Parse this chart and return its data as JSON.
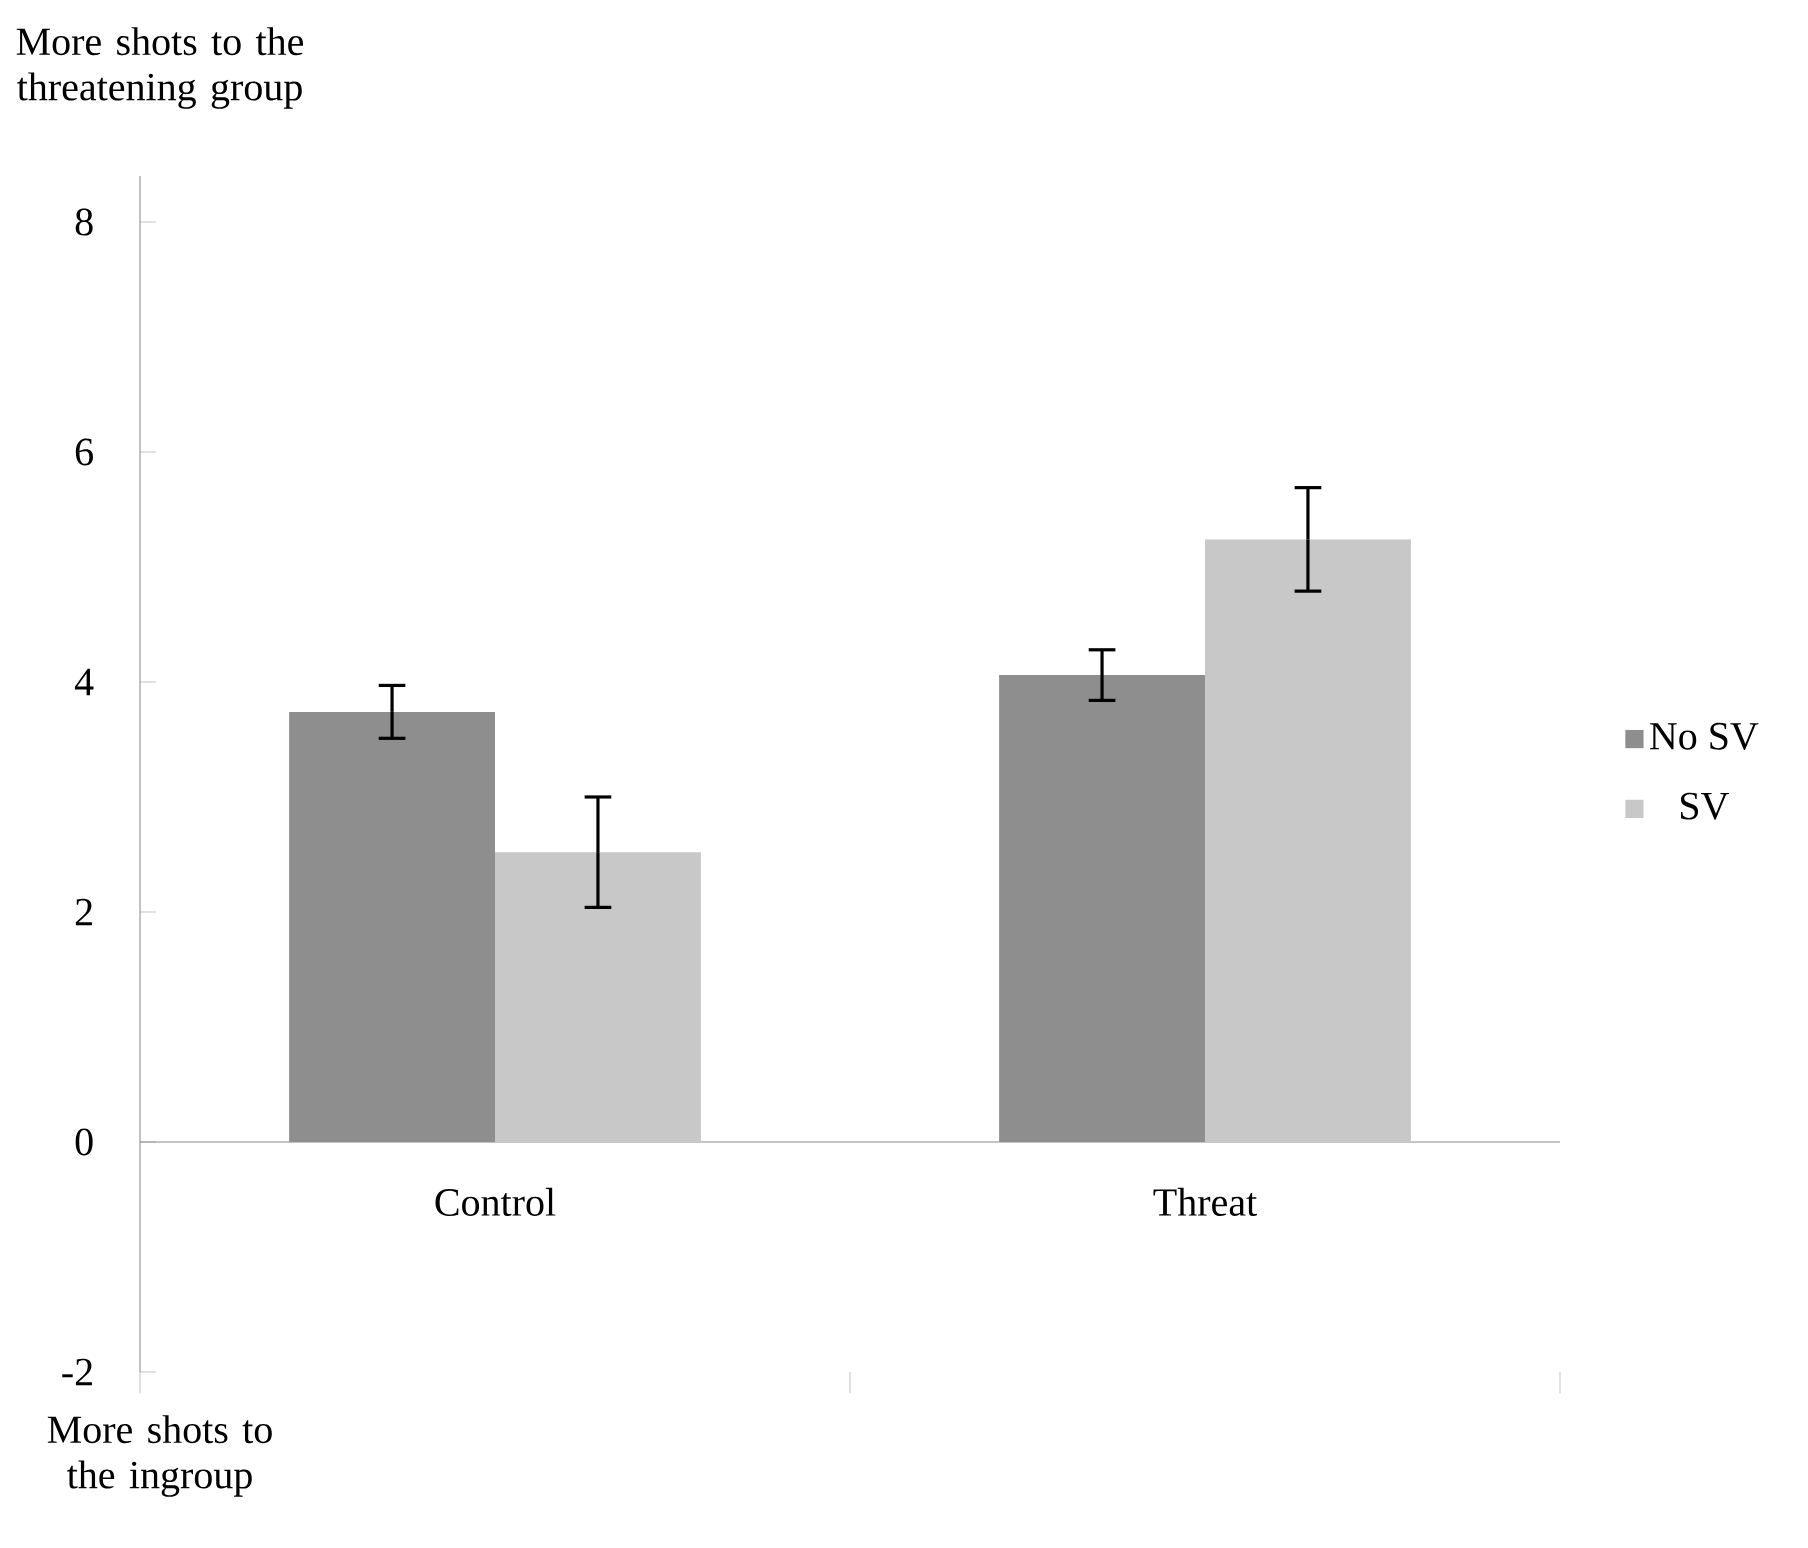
{
  "chart_data": {
    "type": "bar",
    "categories": [
      "Control",
      "Threat"
    ],
    "series": [
      {
        "name": "No SV",
        "color": "#8e8e8e",
        "values": [
          3.74,
          4.06
        ],
        "errors": [
          0.23,
          0.22
        ]
      },
      {
        "name": "SV",
        "color": "#c8c8c8",
        "values": [
          2.52,
          5.24
        ],
        "errors": [
          0.48,
          0.45
        ]
      }
    ],
    "ylim": [
      -2,
      8.4
    ],
    "yticks": [
      -2,
      0,
      2,
      4,
      6,
      8
    ],
    "legend": "right",
    "annotations": [
      "More shots to the threatening group",
      "More shots to the ingroup"
    ]
  }
}
